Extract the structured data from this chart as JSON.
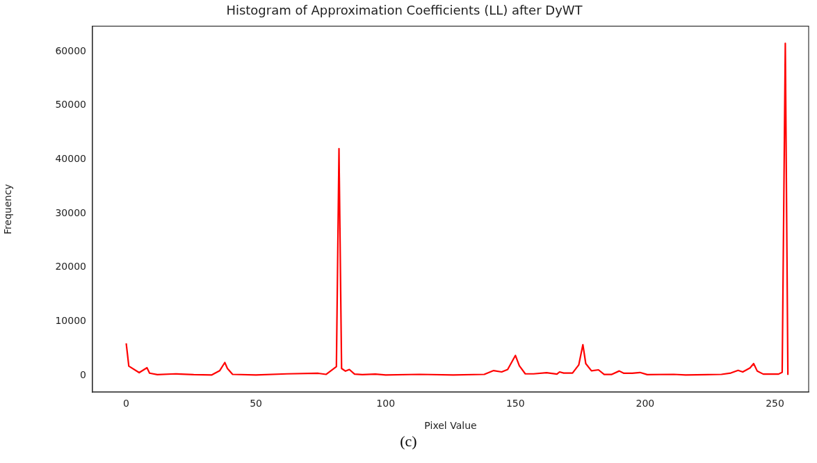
{
  "chart_data": {
    "type": "line",
    "title": "Histogram of Approximation Coefficients (LL) after DyWT",
    "xlabel": "Pixel Value",
    "ylabel": "Frequency",
    "x": [
      0,
      1,
      5,
      8,
      9,
      12,
      19,
      26,
      33,
      36,
      38,
      39,
      41,
      50,
      62,
      74,
      77,
      81,
      82,
      83,
      84.5,
      86,
      88,
      91,
      96,
      100,
      113,
      126,
      138,
      141.6,
      144.7,
      147,
      150,
      151.5,
      153.8,
      157,
      162,
      166,
      167,
      168.6,
      172,
      174.4,
      176,
      177.1,
      179.3,
      182,
      184.2,
      187,
      190,
      191.8,
      195,
      198,
      200.8,
      211,
      215.6,
      229.4,
      233,
      235.8,
      237.6,
      240.4,
      241.8,
      243.2,
      245.5,
      251.4,
      252.8,
      254,
      255
    ],
    "series": [
      {
        "color": "#ff0000",
        "values": [
          5960,
          1740,
          520,
          1430,
          430,
          150,
          300,
          150,
          100,
          870,
          2390,
          1300,
          200,
          100,
          300,
          400,
          200,
          1650,
          42000,
          1300,
          800,
          1100,
          250,
          150,
          250,
          100,
          200,
          100,
          200,
          900,
          650,
          1100,
          3700,
          1800,
          300,
          300,
          500,
          250,
          650,
          450,
          450,
          1950,
          5700,
          2200,
          870,
          1040,
          180,
          180,
          830,
          400,
          400,
          550,
          150,
          200,
          100,
          200,
          450,
          950,
          650,
          1400,
          2200,
          800,
          250,
          250,
          600,
          61500,
          100
        ]
      }
    ],
    "xlim": [
      -13,
      263
    ],
    "xticks": [
      0,
      50,
      100,
      150,
      200,
      250
    ],
    "ylim": [
      -3080,
      64680
    ],
    "yticks": [
      0,
      10000,
      20000,
      30000,
      40000,
      50000,
      60000
    ],
    "grid": false,
    "legend": false,
    "annotations": [
      "(c)"
    ]
  }
}
